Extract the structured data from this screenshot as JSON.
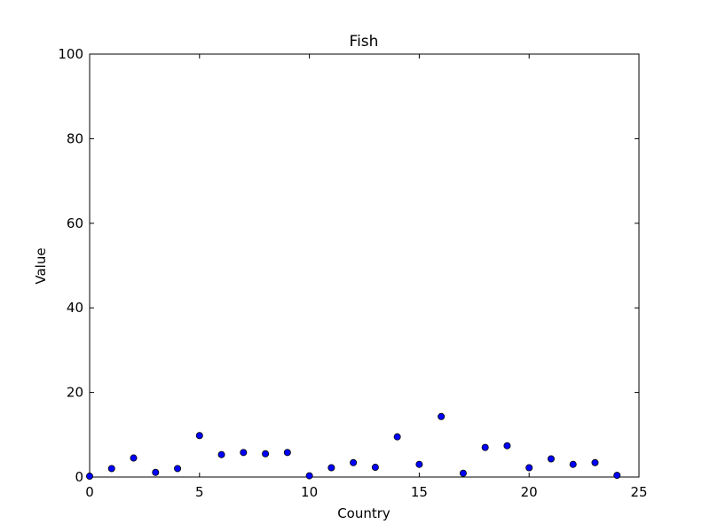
{
  "chart_data": {
    "type": "scatter",
    "title": "Fish",
    "xlabel": "Country",
    "ylabel": "Value",
    "xlim": [
      0,
      25
    ],
    "ylim": [
      0,
      100
    ],
    "xticks": [
      "0",
      "5",
      "10",
      "15",
      "20",
      "25"
    ],
    "yticks": [
      "0",
      "20",
      "40",
      "60",
      "80",
      "100"
    ],
    "grid": false,
    "colors": {
      "marker_fill": "#0000ff",
      "marker_edge": "#000000",
      "axes": "#000000"
    },
    "x": [
      0,
      1,
      2,
      3,
      4,
      5,
      6,
      7,
      8,
      9,
      10,
      11,
      12,
      13,
      14,
      15,
      16,
      17,
      18,
      19,
      20,
      21,
      22,
      23,
      24
    ],
    "y": [
      0.2,
      2.0,
      4.5,
      1.1,
      2.0,
      9.8,
      5.3,
      5.8,
      5.5,
      5.8,
      0.3,
      2.2,
      3.4,
      2.3,
      9.5,
      3.0,
      14.3,
      0.9,
      7.0,
      7.4,
      2.2,
      4.3,
      3.0,
      3.4,
      0.4
    ]
  }
}
